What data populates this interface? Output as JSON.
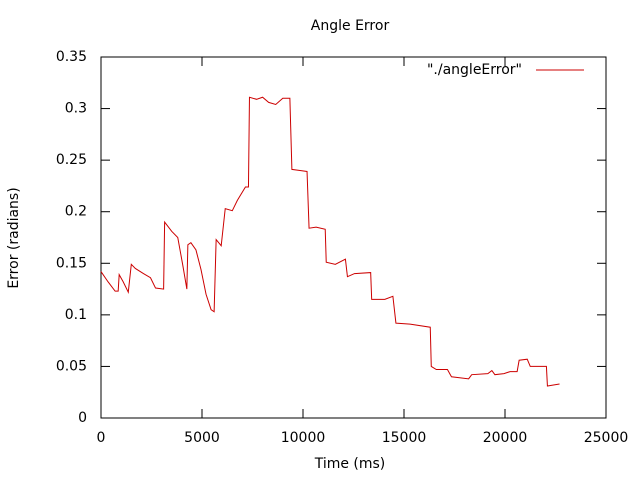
{
  "chart_data": {
    "type": "line",
    "title": "Angle Error",
    "x_label": "Time (ms)",
    "y_label": "Error (radians)",
    "xlim": [
      0,
      25000
    ],
    "ylim": [
      0,
      0.35
    ],
    "xticks": [
      0,
      5000,
      10000,
      15000,
      20000,
      25000
    ],
    "yticks": [
      0,
      0.05,
      0.1,
      0.15,
      0.2,
      0.25,
      0.3,
      0.35
    ],
    "grid": false,
    "legend": "top-right",
    "x": [
      0,
      350,
      700,
      850,
      900,
      1100,
      1350,
      1500,
      1700,
      2100,
      2450,
      2700,
      3100,
      3150,
      3500,
      3800,
      4050,
      4250,
      4300,
      4450,
      4700,
      4950,
      5200,
      5450,
      5600,
      5700,
      5950,
      6150,
      6500,
      6750,
      7150,
      7300,
      7350,
      7700,
      8000,
      8300,
      8650,
      9000,
      9350,
      9450,
      9850,
      10200,
      10300,
      10650,
      11100,
      11150,
      11600,
      12100,
      12200,
      12550,
      13350,
      13400,
      14050,
      14450,
      14600,
      15300,
      16300,
      16350,
      16600,
      17150,
      17350,
      18200,
      18350,
      19150,
      19350,
      19500,
      19950,
      20250,
      20600,
      20700,
      21100,
      21250,
      22050,
      22100,
      22400,
      22700
    ],
    "series": [
      {
        "name": "\"./angleError\"",
        "color": "#cc0000",
        "values": [
          0.142,
          0.132,
          0.123,
          0.123,
          0.139,
          0.132,
          0.122,
          0.149,
          0.145,
          0.14,
          0.136,
          0.126,
          0.125,
          0.19,
          0.181,
          0.175,
          0.148,
          0.125,
          0.168,
          0.17,
          0.163,
          0.144,
          0.12,
          0.105,
          0.103,
          0.173,
          0.167,
          0.203,
          0.201,
          0.211,
          0.224,
          0.224,
          0.311,
          0.309,
          0.311,
          0.306,
          0.304,
          0.31,
          0.31,
          0.241,
          0.24,
          0.239,
          0.184,
          0.185,
          0.183,
          0.151,
          0.149,
          0.154,
          0.137,
          0.14,
          0.141,
          0.115,
          0.115,
          0.118,
          0.092,
          0.091,
          0.088,
          0.05,
          0.047,
          0.047,
          0.04,
          0.038,
          0.042,
          0.043,
          0.046,
          0.042,
          0.043,
          0.045,
          0.045,
          0.056,
          0.057,
          0.05,
          0.05,
          0.031,
          0.032,
          0.033
        ]
      }
    ]
  }
}
